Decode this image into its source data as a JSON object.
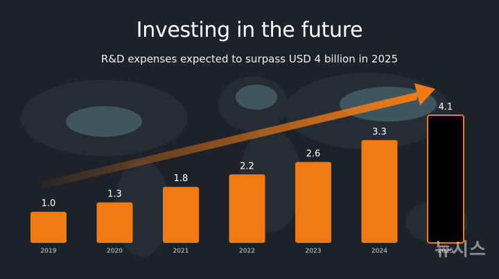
{
  "chart_data": {
    "type": "bar",
    "title": "Investing in the future",
    "subtitle": "R&D expenses expected to surpass USD 4 billion in 2025",
    "categories": [
      "2019",
      "2020",
      "2021",
      "2022",
      "2023",
      "2024",
      "2025"
    ],
    "values": [
      1.0,
      1.3,
      1.8,
      2.2,
      2.6,
      3.3,
      4.1
    ],
    "value_labels": [
      "1.0",
      "1.3",
      "1.8",
      "2.2",
      "2.6",
      "3.3",
      "4.1"
    ],
    "projected_index": 6,
    "ylabel": "",
    "xlabel": "",
    "ylim": [
      0,
      4.1
    ]
  },
  "colors": {
    "background": "#1d2129",
    "bar": "#f07a14",
    "bar_projected": "#000000",
    "outline_projected": "#f07a14",
    "arrow": "#f07a14",
    "text": "#ffffff",
    "tick": "#cfd3d8"
  },
  "watermark": "뉴시스"
}
